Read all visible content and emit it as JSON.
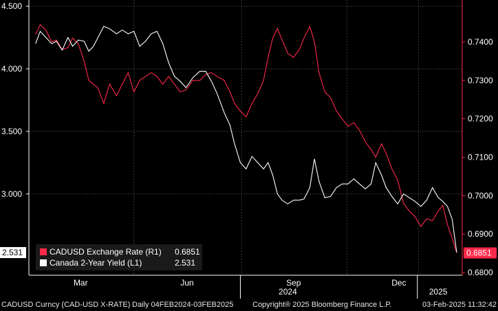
{
  "chart_data": {
    "type": "line",
    "x_range": [
      "2024-02-04",
      "2025-02-03"
    ],
    "left_axis": {
      "ticks": [
        "4.500",
        "4.000",
        "3.500",
        "3.000"
      ],
      "ylim": [
        2.35,
        4.55
      ],
      "label": ""
    },
    "right_axis": {
      "ticks": [
        "0.7400",
        "0.7300",
        "0.7200",
        "0.7100",
        "0.7000",
        "0.6900",
        "0.6800"
      ],
      "ylim": [
        0.6793,
        0.7509
      ],
      "label": ""
    },
    "x_tick_labels": [
      "Mar",
      "Jun",
      "Sep",
      "Dec"
    ],
    "year_labels": [
      "2024",
      "2025"
    ],
    "grid": true,
    "legend_position": "bottom-left",
    "series": [
      {
        "name": "CADUSD Exchange Rate (R1)",
        "axis": "right",
        "color": "#ff2a4a",
        "last_value": "0.6851",
        "points": [
          [
            "2024-02-05",
            0.742
          ],
          [
            "2024-02-09",
            0.7445
          ],
          [
            "2024-02-14",
            0.743
          ],
          [
            "2024-02-19",
            0.74
          ],
          [
            "2024-02-23",
            0.7405
          ],
          [
            "2024-02-28",
            0.738
          ],
          [
            "2024-03-04",
            0.7385
          ],
          [
            "2024-03-08",
            0.741
          ],
          [
            "2024-03-13",
            0.7395
          ],
          [
            "2024-03-18",
            0.735
          ],
          [
            "2024-03-22",
            0.73
          ],
          [
            "2024-03-26",
            0.729
          ],
          [
            "2024-03-30",
            0.728
          ],
          [
            "2024-04-04",
            0.724
          ],
          [
            "2024-04-09",
            0.729
          ],
          [
            "2024-04-15",
            0.726
          ],
          [
            "2024-04-20",
            0.729
          ],
          [
            "2024-04-25",
            0.732
          ],
          [
            "2024-04-30",
            0.727
          ],
          [
            "2024-05-05",
            0.73
          ],
          [
            "2024-05-10",
            0.731
          ],
          [
            "2024-05-15",
            0.732
          ],
          [
            "2024-05-20",
            0.731
          ],
          [
            "2024-05-25",
            0.729
          ],
          [
            "2024-05-30",
            0.731
          ],
          [
            "2024-06-04",
            0.729
          ],
          [
            "2024-06-09",
            0.727
          ],
          [
            "2024-06-14",
            0.7275
          ],
          [
            "2024-06-20",
            0.73
          ],
          [
            "2024-06-26",
            0.73
          ],
          [
            "2024-07-01",
            0.7315
          ],
          [
            "2024-07-06",
            0.732
          ],
          [
            "2024-07-11",
            0.731
          ],
          [
            "2024-07-17",
            0.73
          ],
          [
            "2024-07-22",
            0.727
          ],
          [
            "2024-07-26",
            0.724
          ],
          [
            "2024-07-31",
            0.722
          ],
          [
            "2024-08-05",
            0.7205
          ],
          [
            "2024-08-10",
            0.724
          ],
          [
            "2024-08-15",
            0.7265
          ],
          [
            "2024-08-20",
            0.73
          ],
          [
            "2024-08-24",
            0.736
          ],
          [
            "2024-08-28",
            0.741
          ],
          [
            "2024-09-01",
            0.7435
          ],
          [
            "2024-09-05",
            0.7405
          ],
          [
            "2024-09-10",
            0.737
          ],
          [
            "2024-09-15",
            0.736
          ],
          [
            "2024-09-20",
            0.738
          ],
          [
            "2024-09-24",
            0.741
          ],
          [
            "2024-09-29",
            0.744
          ],
          [
            "2024-10-03",
            0.74
          ],
          [
            "2024-10-07",
            0.732
          ],
          [
            "2024-10-12",
            0.727
          ],
          [
            "2024-10-17",
            0.7255
          ],
          [
            "2024-10-22",
            0.722
          ],
          [
            "2024-10-27",
            0.72
          ],
          [
            "2024-11-01",
            0.718
          ],
          [
            "2024-11-06",
            0.719
          ],
          [
            "2024-11-11",
            0.717
          ],
          [
            "2024-11-16",
            0.714
          ],
          [
            "2024-11-21",
            0.712
          ],
          [
            "2024-11-25",
            0.71
          ],
          [
            "2024-11-30",
            0.7135
          ],
          [
            "2024-12-04",
            0.711
          ],
          [
            "2024-12-09",
            0.707
          ],
          [
            "2024-12-14",
            0.704
          ],
          [
            "2024-12-19",
            0.698
          ],
          [
            "2024-12-24",
            0.696
          ],
          [
            "2024-12-29",
            0.6945
          ],
          [
            "2025-01-03",
            0.692
          ],
          [
            "2025-01-08",
            0.694
          ],
          [
            "2025-01-13",
            0.6935
          ],
          [
            "2025-01-18",
            0.696
          ],
          [
            "2025-01-22",
            0.6975
          ],
          [
            "2025-01-26",
            0.6925
          ],
          [
            "2025-01-30",
            0.689
          ],
          [
            "2025-02-03",
            0.6851
          ]
        ]
      },
      {
        "name": "Canada 2-Year Yield (L1)",
        "axis": "left",
        "color": "#ffffff",
        "last_value": "2.531",
        "points": [
          [
            "2024-02-05",
            4.2
          ],
          [
            "2024-02-09",
            4.3
          ],
          [
            "2024-02-14",
            4.25
          ],
          [
            "2024-02-19",
            4.2
          ],
          [
            "2024-02-23",
            4.22
          ],
          [
            "2024-02-28",
            4.15
          ],
          [
            "2024-03-04",
            4.25
          ],
          [
            "2024-03-08",
            4.18
          ],
          [
            "2024-03-13",
            4.23
          ],
          [
            "2024-03-18",
            4.22
          ],
          [
            "2024-03-22",
            4.14
          ],
          [
            "2024-03-26",
            4.18
          ],
          [
            "2024-03-30",
            4.25
          ],
          [
            "2024-04-04",
            4.34
          ],
          [
            "2024-04-09",
            4.32
          ],
          [
            "2024-04-15",
            4.28
          ],
          [
            "2024-04-20",
            4.31
          ],
          [
            "2024-04-25",
            4.28
          ],
          [
            "2024-04-30",
            4.3
          ],
          [
            "2024-05-05",
            4.18
          ],
          [
            "2024-05-10",
            4.22
          ],
          [
            "2024-05-15",
            4.28
          ],
          [
            "2024-05-20",
            4.3
          ],
          [
            "2024-05-25",
            4.2
          ],
          [
            "2024-05-30",
            4.05
          ],
          [
            "2024-06-04",
            3.94
          ],
          [
            "2024-06-09",
            3.9
          ],
          [
            "2024-06-14",
            3.85
          ],
          [
            "2024-06-20",
            3.93
          ],
          [
            "2024-06-26",
            3.98
          ],
          [
            "2024-07-01",
            3.98
          ],
          [
            "2024-07-06",
            3.9
          ],
          [
            "2024-07-11",
            3.8
          ],
          [
            "2024-07-17",
            3.65
          ],
          [
            "2024-07-22",
            3.55
          ],
          [
            "2024-07-26",
            3.4
          ],
          [
            "2024-07-31",
            3.25
          ],
          [
            "2024-08-05",
            3.2
          ],
          [
            "2024-08-10",
            3.3
          ],
          [
            "2024-08-15",
            3.25
          ],
          [
            "2024-08-20",
            3.2
          ],
          [
            "2024-08-24",
            3.25
          ],
          [
            "2024-08-28",
            3.15
          ],
          [
            "2024-09-01",
            3.0
          ],
          [
            "2024-09-05",
            2.95
          ],
          [
            "2024-09-10",
            2.92
          ],
          [
            "2024-09-15",
            2.95
          ],
          [
            "2024-09-20",
            2.95
          ],
          [
            "2024-09-24",
            2.96
          ],
          [
            "2024-09-29",
            3.05
          ],
          [
            "2024-10-03",
            3.28
          ],
          [
            "2024-10-07",
            3.1
          ],
          [
            "2024-10-12",
            2.97
          ],
          [
            "2024-10-17",
            2.98
          ],
          [
            "2024-10-22",
            3.05
          ],
          [
            "2024-10-27",
            3.08
          ],
          [
            "2024-11-01",
            3.08
          ],
          [
            "2024-11-06",
            3.12
          ],
          [
            "2024-11-11",
            3.08
          ],
          [
            "2024-11-16",
            3.04
          ],
          [
            "2024-11-21",
            3.08
          ],
          [
            "2024-11-25",
            3.25
          ],
          [
            "2024-11-30",
            3.15
          ],
          [
            "2024-12-04",
            3.05
          ],
          [
            "2024-12-09",
            2.98
          ],
          [
            "2024-12-14",
            2.92
          ],
          [
            "2024-12-19",
            3.0
          ],
          [
            "2024-12-24",
            2.97
          ],
          [
            "2024-12-29",
            2.94
          ],
          [
            "2025-01-03",
            2.9
          ],
          [
            "2025-01-08",
            2.95
          ],
          [
            "2025-01-13",
            3.05
          ],
          [
            "2025-01-18",
            2.97
          ],
          [
            "2025-01-22",
            2.94
          ],
          [
            "2025-01-26",
            2.9
          ],
          [
            "2025-01-30",
            2.8
          ],
          [
            "2025-02-03",
            2.531
          ]
        ]
      }
    ]
  },
  "legend": {
    "items": [
      {
        "label": "CADUSD Exchange Rate (R1)",
        "value": "0.6851",
        "color": "#ff2a4a"
      },
      {
        "label": "Canada 2-Year Yield (L1)",
        "value": "2.531",
        "color": "#ffffff"
      }
    ]
  },
  "footer": {
    "security": "CADUSD Curncy (CAD-USD X-RATE)",
    "period": "Daily 04FEB2024-03FEB2025",
    "copyright": "Copyright® 2025 Bloomberg Finance L.P.",
    "timestamp": "03-Feb-2025 11:32:42"
  },
  "colors": {
    "left_axis": "#ffffff",
    "right_axis": "#ff2a4a",
    "grid": "#3c3c3c",
    "background": "#000000"
  }
}
